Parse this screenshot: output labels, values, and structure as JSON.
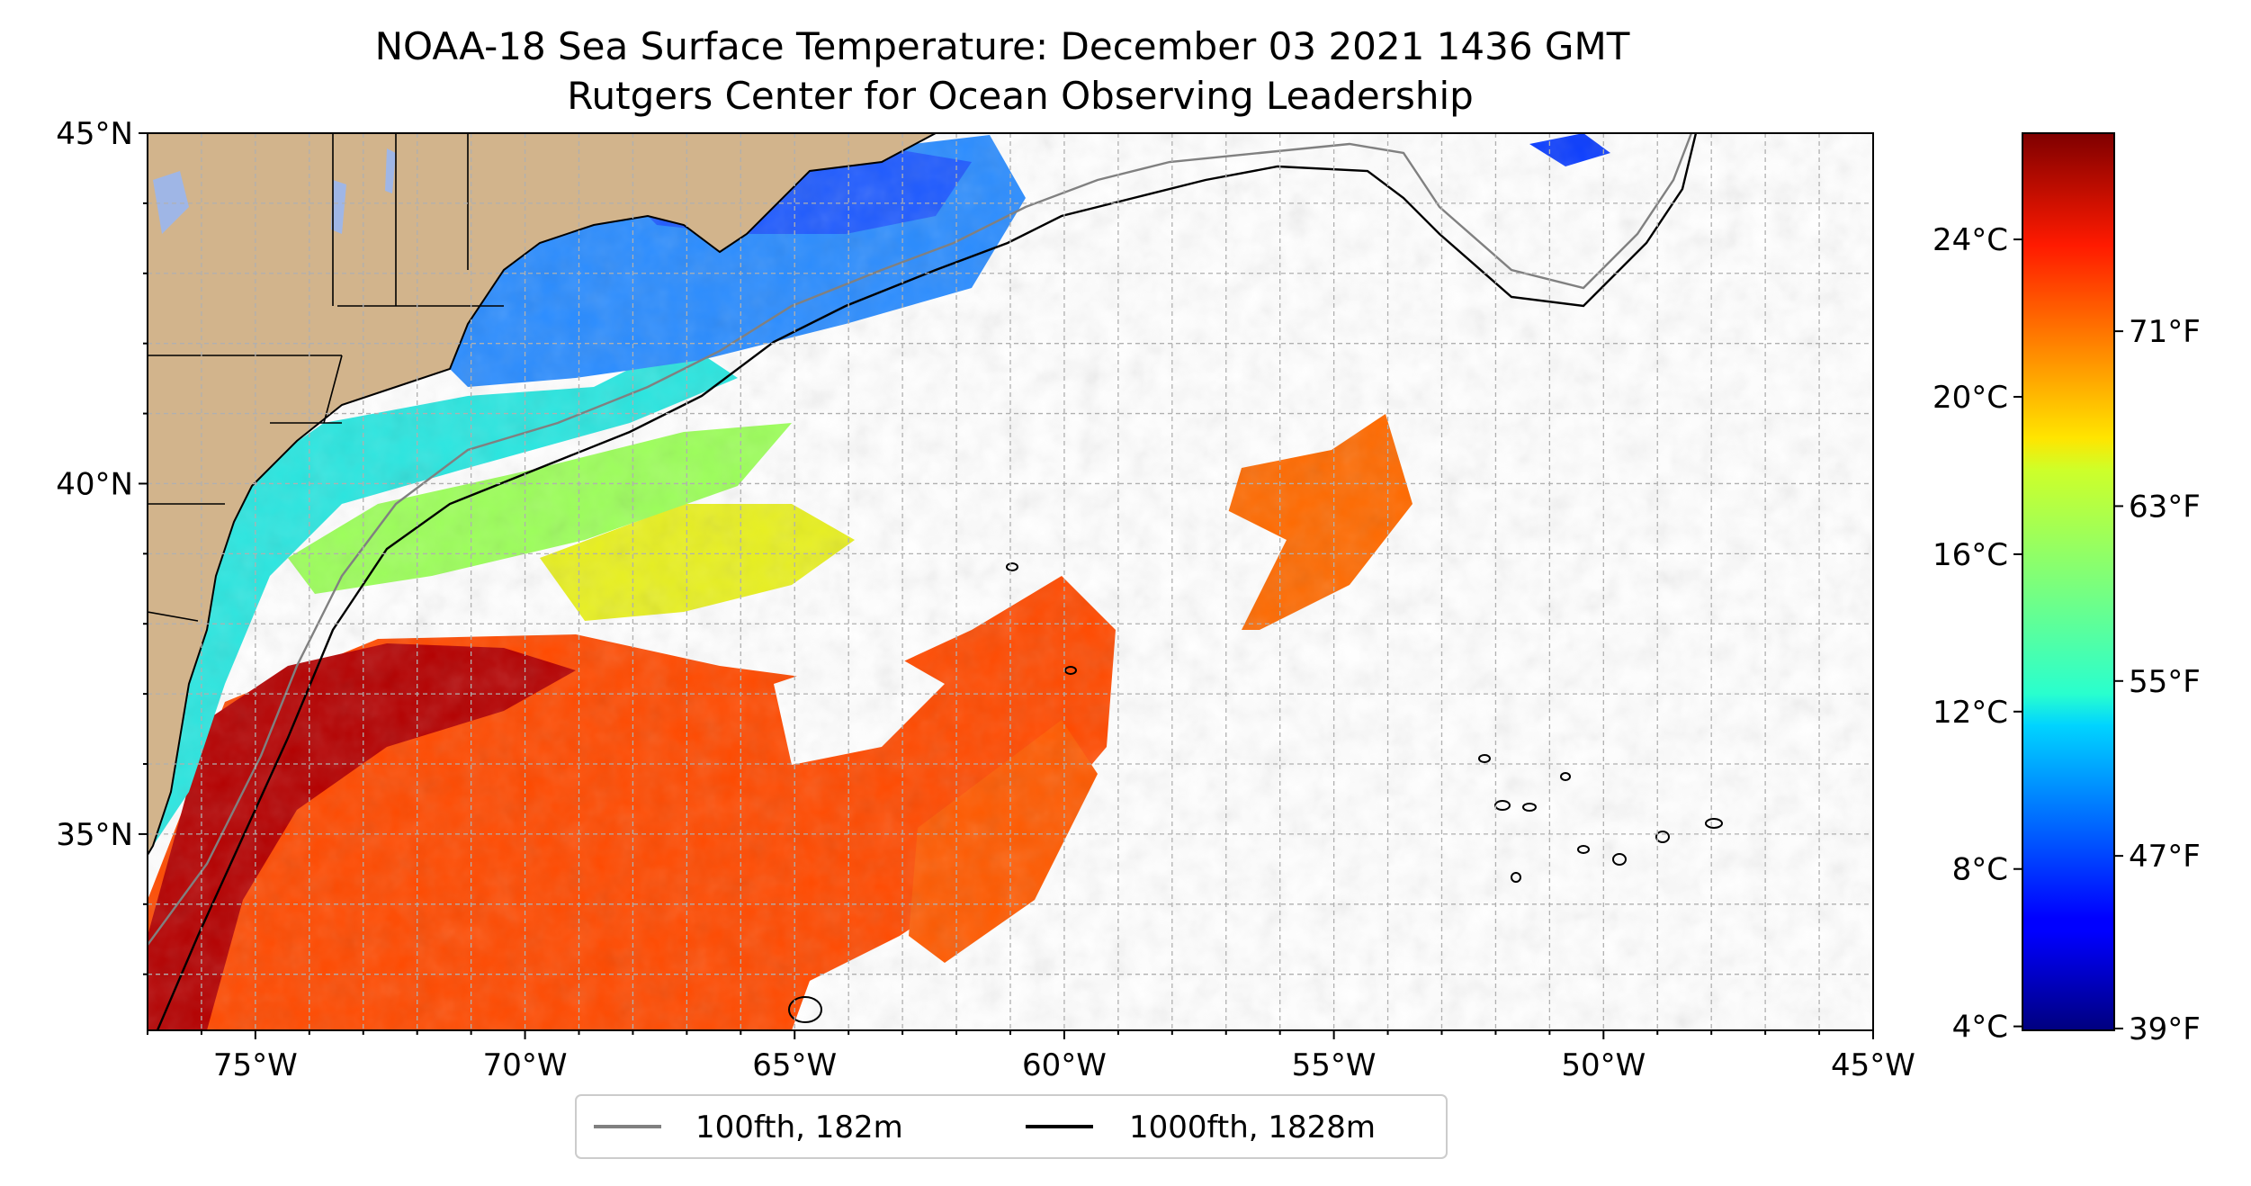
{
  "title": {
    "line1": "NOAA-18 Sea Surface Temperature: December 03 2021 1436 GMT",
    "line2": "Rutgers Center for Ocean Observing Leadership"
  },
  "map": {
    "lon_range": [
      -77,
      -45
    ],
    "lat_range": [
      32.2,
      45
    ],
    "lon_ticks": [
      {
        "value": -75,
        "label": "75°W"
      },
      {
        "value": -70,
        "label": "70°W"
      },
      {
        "value": -65,
        "label": "65°W"
      },
      {
        "value": -60,
        "label": "60°W"
      },
      {
        "value": -55,
        "label": "55°W"
      },
      {
        "value": -50,
        "label": "50°W"
      },
      {
        "value": -45,
        "label": "45°W"
      }
    ],
    "lat_ticks": [
      {
        "value": 45,
        "label": "45°N"
      },
      {
        "value": 40,
        "label": "40°N"
      },
      {
        "value": 35,
        "label": "35°N"
      }
    ],
    "grid": true,
    "colors": {
      "land": "#d2b48c",
      "lakes": "#9fb6e6",
      "isobath_100": "#808080",
      "isobath_1000": "#000000"
    }
  },
  "legend": {
    "placement": "bottom-center",
    "items": [
      {
        "label": "100fth, 182m",
        "color": "#808080"
      },
      {
        "label": "1000fth, 1828m",
        "color": "#000000"
      }
    ]
  },
  "colorbar": {
    "colormap": "jet",
    "celsius_ticks": [
      {
        "value": 24,
        "label": "24°C"
      },
      {
        "value": 20,
        "label": "20°C"
      },
      {
        "value": 16,
        "label": "16°C"
      },
      {
        "value": 12,
        "label": "12°C"
      },
      {
        "value": 8,
        "label": "8°C"
      },
      {
        "value": 4,
        "label": "4°C"
      }
    ],
    "fahrenheit_ticks": [
      {
        "value": 71,
        "label": "71°F"
      },
      {
        "value": 63,
        "label": "63°F"
      },
      {
        "value": 55,
        "label": "55°F"
      },
      {
        "value": 47,
        "label": "47°F"
      },
      {
        "value": 39,
        "label": "39°F"
      }
    ]
  }
}
